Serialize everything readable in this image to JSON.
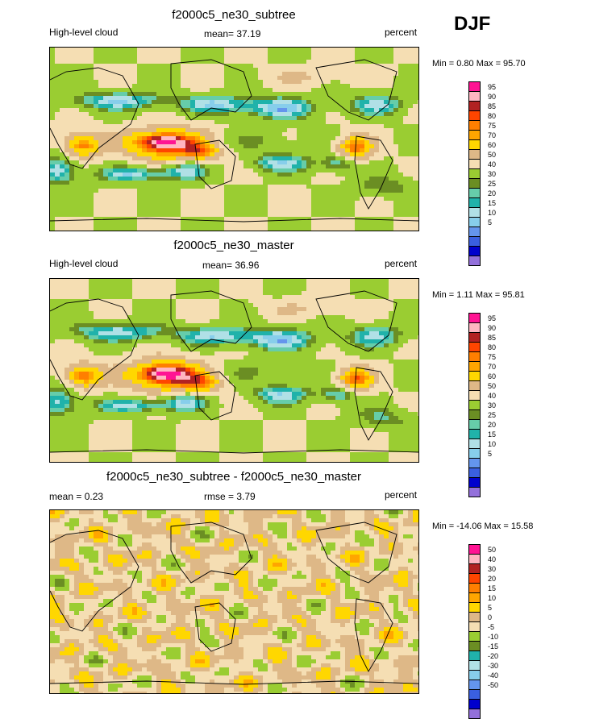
{
  "season": "DJF",
  "palette": {
    "abs": [
      "#9370db",
      "#0000cd",
      "#3a5fe0",
      "#6495ed",
      "#87ceeb",
      "#b0e0e6",
      "#20b2aa",
      "#66cdaa",
      "#6b8e23",
      "#9acd32",
      "#f5deb3",
      "#deb887",
      "#ffd700",
      "#ffa500",
      "#ff7f00",
      "#ff4500",
      "#b22222",
      "#ffb6c1",
      "#ff1493"
    ],
    "diff": [
      "#9370db",
      "#0000cd",
      "#3a5fe0",
      "#6495ed",
      "#87ceeb",
      "#b0e0e6",
      "#20b2aa",
      "#6b8e23",
      "#9acd32",
      "#f5deb3",
      "#deb887",
      "#ffd700",
      "#ffa500",
      "#ff7f00",
      "#ff4500",
      "#b22222",
      "#ffb6c1",
      "#ff1493"
    ]
  },
  "chart_data": [
    {
      "type": "heatmap",
      "title": "f2000c5_ne30_subtree",
      "variable": "High-level cloud",
      "mean_label": "mean=  37.19",
      "units": "percent",
      "minmax_label": "Min =   0.80 Max =  95.70",
      "min": 0.8,
      "max": 95.7,
      "mean": 37.19,
      "legend_levels": [
        "5",
        "10",
        "15",
        "20",
        "25",
        "30",
        "40",
        "50",
        "60",
        "70",
        "75",
        "80",
        "85",
        "90",
        "95"
      ]
    },
    {
      "type": "heatmap",
      "title": "f2000c5_ne30_master",
      "variable": "High-level cloud",
      "mean_label": "mean=  36.96",
      "units": "percent",
      "minmax_label": "Min =   1.11 Max =  95.81",
      "min": 1.11,
      "max": 95.81,
      "mean": 36.96,
      "legend_levels": [
        "5",
        "10",
        "15",
        "20",
        "25",
        "30",
        "40",
        "50",
        "60",
        "70",
        "75",
        "80",
        "85",
        "90",
        "95"
      ]
    },
    {
      "type": "heatmap",
      "title": "f2000c5_ne30_subtree - f2000c5_ne30_master",
      "mean_label": "mean =   0.23",
      "rmse_label": "rmse =   3.79",
      "units": "percent",
      "minmax_label": "Min = -14.06 Max =  15.58",
      "min": -14.06,
      "max": 15.58,
      "mean": 0.23,
      "rmse": 3.79,
      "legend_levels": [
        "-50",
        "-40",
        "-30",
        "-20",
        "-15",
        "-10",
        "-5",
        "0",
        "5",
        "10",
        "15",
        "20",
        "30",
        "40",
        "50"
      ]
    }
  ]
}
